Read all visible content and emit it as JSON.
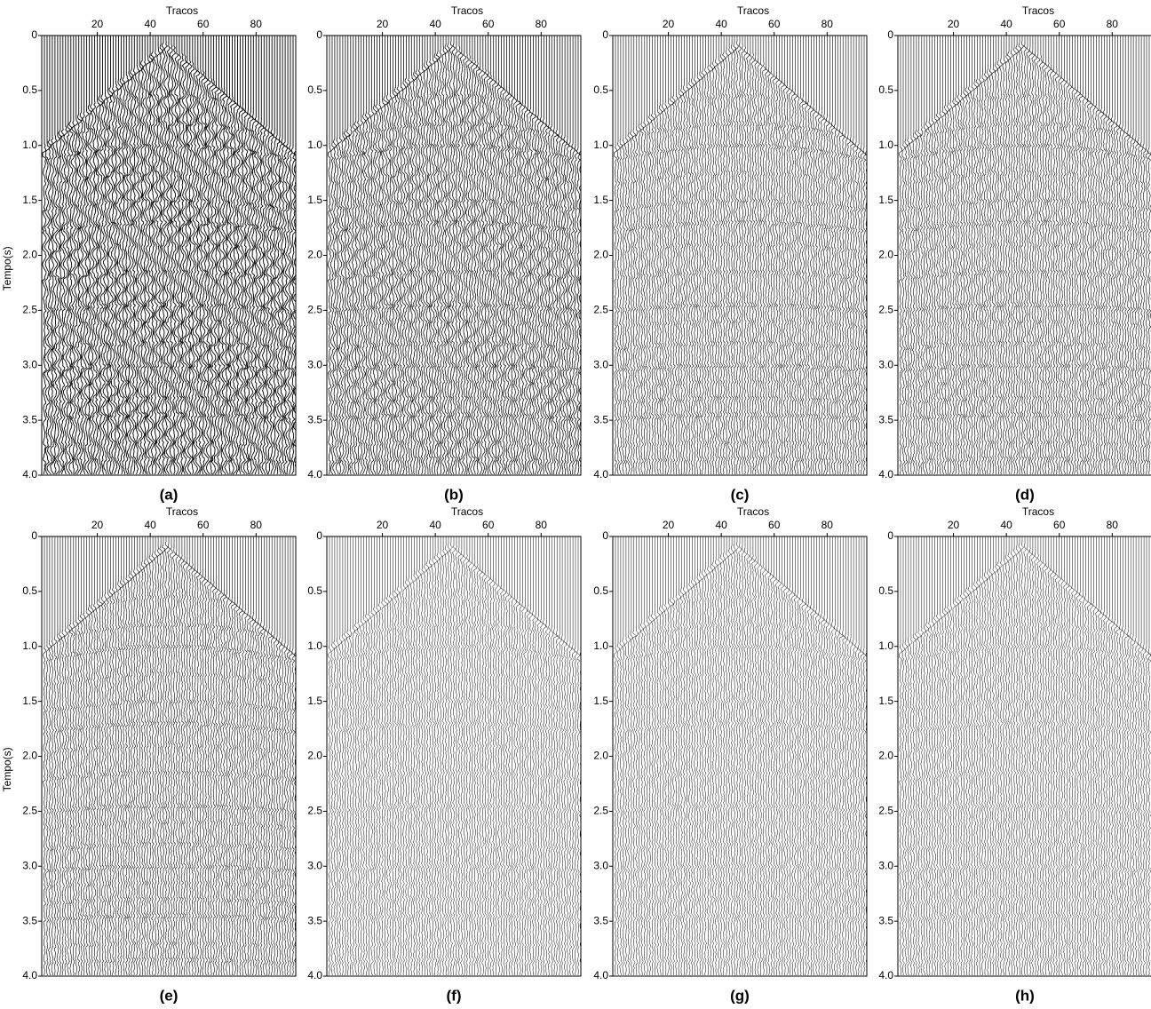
{
  "axes": {
    "xlabel": "Tracos",
    "ylabel": "Tempo(s)",
    "xlim": [
      -1,
      95
    ],
    "ylim": [
      0,
      4
    ],
    "xticks": [
      20,
      40,
      60,
      80
    ],
    "yticks": [
      0,
      0.5,
      {
        "value": 1,
        "label": "1.0"
      },
      1.5,
      {
        "value": 2,
        "label": "2.0"
      },
      2.5,
      {
        "value": 3,
        "label": "3.0"
      },
      3.5,
      {
        "value": 4,
        "label": "4.0"
      }
    ]
  },
  "panels": [
    {
      "label": "(a)"
    },
    {
      "label": "(b)"
    },
    {
      "label": "(c)"
    },
    {
      "label": "(d)"
    },
    {
      "label": "(e)"
    },
    {
      "label": "(f)"
    },
    {
      "label": "(g)"
    },
    {
      "label": "(h)"
    }
  ]
}
